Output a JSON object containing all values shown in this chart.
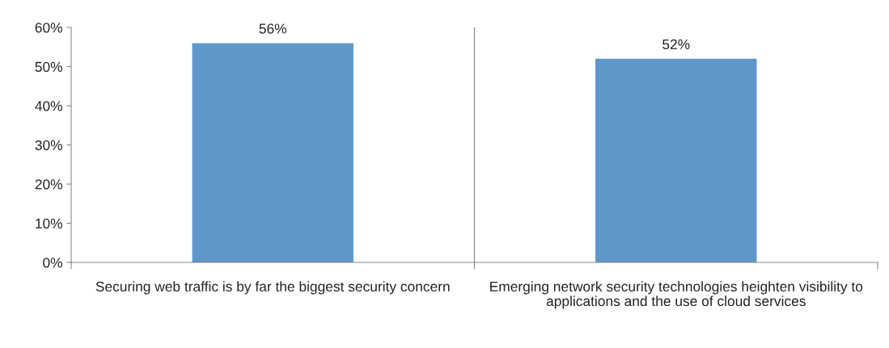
{
  "chart_data": {
    "type": "bar",
    "categories": [
      "Securing web traffic is by far the biggest security concern",
      "Emerging network security technologies heighten visibility to applications and the use of cloud services"
    ],
    "values": [
      56,
      52
    ],
    "color": "#6097cb",
    "value_labels": [
      "56%",
      "52%"
    ],
    "ylim": [
      0,
      60
    ],
    "yticks": [
      {
        "value": 0,
        "label": "0%"
      },
      {
        "value": 10,
        "label": "10%"
      },
      {
        "value": 20,
        "label": "20%"
      },
      {
        "value": 30,
        "label": "30%"
      },
      {
        "value": 40,
        "label": "40%"
      },
      {
        "value": 50,
        "label": "50%"
      },
      {
        "value": 60,
        "label": "60%"
      }
    ],
    "grid": "x",
    "legend": false
  }
}
